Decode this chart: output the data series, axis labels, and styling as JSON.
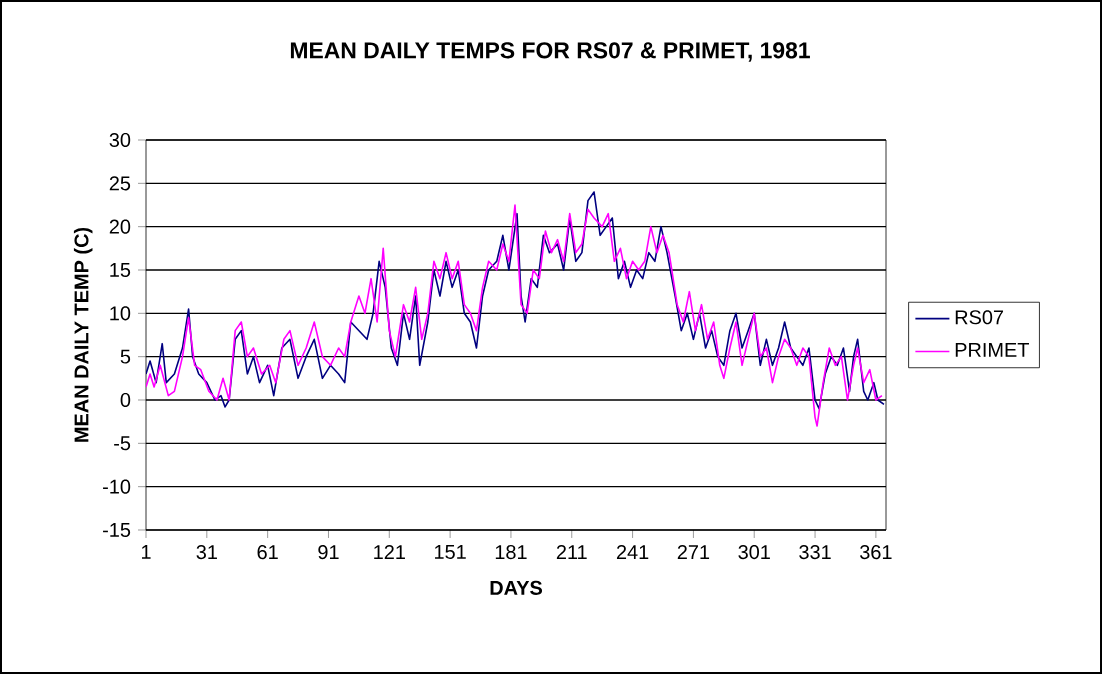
{
  "chart_data": {
    "type": "line",
    "title": "MEAN DAILY TEMPS FOR RS07 & PRIMET, 1981",
    "xlabel": "DAYS",
    "ylabel": "MEAN DAILY TEMP (C)",
    "xlim": [
      1,
      366
    ],
    "xticks": [
      1,
      31,
      61,
      91,
      121,
      151,
      181,
      211,
      241,
      271,
      301,
      331,
      361
    ],
    "ylim": [
      -15,
      30
    ],
    "yticks": [
      -15,
      -10,
      -5,
      0,
      5,
      10,
      15,
      20,
      25,
      30
    ],
    "grid": "y",
    "legend": "right",
    "line_style": "solid",
    "series": [
      {
        "name": "RS07",
        "color": "#000080",
        "x": [
          1,
          3,
          6,
          9,
          11,
          15,
          19,
          22,
          24,
          27,
          31,
          35,
          38,
          40,
          42,
          45,
          48,
          51,
          54,
          57,
          61,
          64,
          68,
          72,
          76,
          80,
          84,
          88,
          92,
          96,
          99,
          102,
          106,
          110,
          113,
          116,
          119,
          122,
          125,
          128,
          131,
          134,
          136,
          140,
          143,
          146,
          149,
          152,
          155,
          158,
          161,
          164,
          167,
          170,
          174,
          177,
          180,
          184,
          186,
          188,
          191,
          194,
          197,
          200,
          204,
          207,
          210,
          213,
          216,
          219,
          222,
          225,
          228,
          231,
          234,
          237,
          240,
          243,
          246,
          249,
          252,
          255,
          258,
          262,
          265,
          268,
          271,
          274,
          277,
          280,
          283,
          286,
          289,
          292,
          295,
          298,
          301,
          304,
          307,
          310,
          313,
          316,
          319,
          322,
          325,
          328,
          331,
          333,
          336,
          339,
          342,
          345,
          348,
          350,
          352,
          355,
          357,
          360,
          362,
          365
        ],
        "values": [
          3,
          4.5,
          2,
          6.5,
          2,
          3,
          6,
          10.5,
          5,
          3,
          2,
          0,
          0.5,
          -0.8,
          0,
          7,
          8,
          3,
          5,
          2,
          4,
          0.5,
          6,
          7,
          2.5,
          5,
          7,
          2.5,
          4,
          3,
          2,
          9,
          8,
          7,
          10,
          16,
          13,
          6,
          4,
          10,
          7,
          12,
          4,
          9,
          15,
          12,
          16,
          13,
          15,
          10,
          9,
          6,
          12,
          15,
          16,
          19,
          15,
          21.5,
          12,
          9,
          14,
          13,
          19,
          17,
          18,
          15,
          21,
          16,
          17,
          23,
          24,
          19,
          20,
          21,
          14,
          16,
          13,
          15,
          14,
          17,
          16,
          20,
          17,
          12,
          8,
          10,
          7,
          10,
          6,
          8,
          5,
          4,
          8,
          10,
          6,
          8,
          10,
          4,
          7,
          4,
          6,
          9,
          6,
          5,
          4,
          6,
          0,
          -1,
          3,
          5,
          4,
          6,
          1,
          5,
          7,
          1,
          0,
          2,
          0,
          -0.5
        ]
      },
      {
        "name": "PRIMET",
        "color": "#ff00ff",
        "x": [
          1,
          3,
          5,
          8,
          12,
          15,
          19,
          22,
          25,
          28,
          32,
          36,
          39,
          42,
          45,
          48,
          51,
          54,
          58,
          62,
          65,
          69,
          72,
          76,
          80,
          84,
          88,
          92,
          96,
          99,
          102,
          106,
          109,
          112,
          115,
          118,
          121,
          124,
          128,
          131,
          134,
          137,
          140,
          143,
          146,
          149,
          152,
          155,
          158,
          161,
          164,
          167,
          170,
          174,
          177,
          180,
          183,
          186,
          189,
          192,
          195,
          198,
          201,
          204,
          207,
          210,
          213,
          216,
          219,
          222,
          226,
          229,
          232,
          235,
          238,
          241,
          244,
          247,
          250,
          253,
          256,
          259,
          263,
          266,
          269,
          272,
          275,
          278,
          281,
          284,
          286,
          289,
          292,
          295,
          298,
          301,
          304,
          307,
          310,
          313,
          316,
          319,
          322,
          325,
          328,
          331,
          332,
          335,
          338,
          341,
          344,
          347,
          350,
          352,
          355,
          358,
          361,
          364
        ],
        "values": [
          1.5,
          3,
          1.5,
          4,
          0.5,
          1,
          5,
          9.5,
          4,
          3.5,
          1,
          0,
          2.5,
          0,
          8,
          9,
          5,
          6,
          3,
          4,
          2,
          7,
          8,
          4,
          6,
          9,
          5,
          4,
          6,
          5,
          9,
          12,
          10,
          14,
          9,
          17.5,
          8,
          5,
          11,
          9,
          13,
          7,
          10,
          16,
          14,
          17,
          14,
          16,
          11,
          10,
          8,
          13,
          16,
          15,
          18,
          16,
          22.5,
          11,
          10,
          15,
          14,
          19.5,
          17,
          18.5,
          16,
          21.5,
          17,
          18,
          22,
          21,
          20,
          21.5,
          16,
          17.5,
          14,
          16,
          15,
          16,
          20,
          17,
          19,
          17,
          11,
          9,
          12.5,
          8,
          11,
          7,
          9,
          4,
          2.5,
          6,
          9,
          4,
          7,
          10,
          5,
          6,
          2,
          5,
          7,
          6,
          4,
          6,
          5,
          -2,
          -3,
          2,
          6,
          4,
          5,
          0,
          4,
          6,
          2,
          3.5,
          0,
          0.5
        ]
      }
    ]
  }
}
